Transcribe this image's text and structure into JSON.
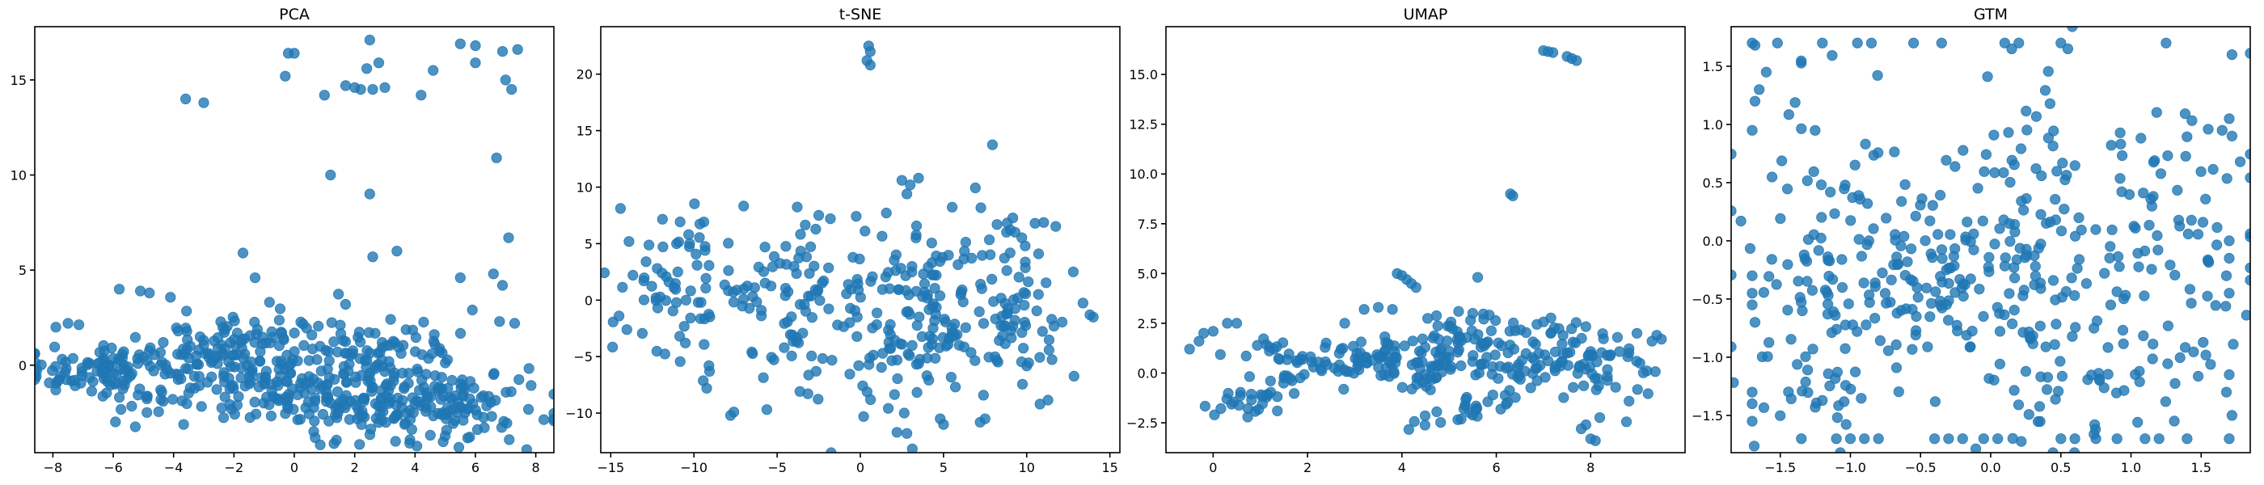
{
  "chart_data": [
    {
      "type": "scatter",
      "title": "PCA",
      "xlim": [
        -8.6,
        8.6
      ],
      "ylim": [
        -4.6,
        17.8
      ],
      "xticks": [
        -8,
        -6,
        -4,
        -2,
        0,
        2,
        4,
        6,
        8
      ],
      "yticks": [
        0,
        5,
        10,
        15
      ],
      "tick_labels_x": [
        "−8",
        "−6",
        "−4",
        "−2",
        "0",
        "2",
        "4",
        "6",
        "8"
      ],
      "tick_labels_y": [
        "0",
        "5",
        "10",
        "15"
      ],
      "point_color": "#1f77b4",
      "points": [
        [
          -0.2,
          16.4
        ],
        [
          0.0,
          16.4
        ],
        [
          -0.3,
          15.2
        ],
        [
          1.0,
          14.2
        ],
        [
          1.7,
          14.7
        ],
        [
          2.0,
          14.6
        ],
        [
          2.2,
          14.5
        ],
        [
          2.5,
          17.1
        ],
        [
          2.4,
          15.6
        ],
        [
          2.8,
          15.9
        ],
        [
          2.6,
          14.5
        ],
        [
          3.0,
          14.6
        ],
        [
          4.2,
          14.2
        ],
        [
          4.6,
          15.5
        ],
        [
          5.5,
          16.9
        ],
        [
          6.0,
          16.8
        ],
        [
          6.0,
          15.9
        ],
        [
          6.9,
          16.5
        ],
        [
          7.4,
          16.6
        ],
        [
          7.0,
          15.0
        ],
        [
          7.2,
          14.5
        ],
        [
          -3.6,
          14.0
        ],
        [
          -3.0,
          13.8
        ],
        [
          1.2,
          10.0
        ],
        [
          6.7,
          10.9
        ],
        [
          2.5,
          9.0
        ],
        [
          7.1,
          6.7
        ],
        [
          -1.7,
          5.9
        ],
        [
          -1.3,
          4.6
        ],
        [
          2.6,
          5.7
        ],
        [
          3.4,
          6.0
        ],
        [
          5.5,
          4.6
        ],
        [
          6.6,
          4.8
        ],
        [
          6.9,
          4.2
        ],
        [
          7.3,
          2.2
        ],
        [
          6.8,
          2.3
        ],
        [
          5.9,
          2.9
        ],
        [
          -4.8,
          3.8
        ],
        [
          -5.1,
          3.9
        ],
        [
          -5.8,
          4.0
        ],
        [
          -7.9,
          2.0
        ],
        [
          -7.5,
          2.2
        ]
      ],
      "clusters": [
        {
          "cx": -6.0,
          "cy": -0.4,
          "sx": 1.6,
          "sy": 0.9,
          "n": 130,
          "tilt": -0.12
        },
        {
          "cx": 0.5,
          "cy": -0.8,
          "sx": 2.4,
          "sy": 1.3,
          "n": 210,
          "tilt": -0.18
        },
        {
          "cx": 4.2,
          "cy": -2.0,
          "sx": 1.9,
          "sy": 1.1,
          "n": 160,
          "tilt": -0.15
        },
        {
          "cx": -2.5,
          "cy": 0.8,
          "sx": 1.6,
          "sy": 1.0,
          "n": 60,
          "tilt": 0.0
        },
        {
          "cx": 2.5,
          "cy": 1.5,
          "sx": 1.8,
          "sy": 0.8,
          "n": 50,
          "tilt": 0.0
        }
      ]
    },
    {
      "type": "scatter",
      "title": "t-SNE",
      "xlim": [
        -15.6,
        15.6
      ],
      "ylim": [
        -13.5,
        24.2
      ],
      "xticks": [
        -15,
        -10,
        -5,
        0,
        5,
        10,
        15
      ],
      "yticks": [
        -10,
        -5,
        0,
        5,
        10,
        15,
        20
      ],
      "tick_labels_x": [
        "−15",
        "−10",
        "−5",
        "0",
        "5",
        "10",
        "15"
      ],
      "tick_labels_y": [
        "−10",
        "−5",
        "0",
        "5",
        "10",
        "15",
        "20"
      ],
      "point_color": "#1f77b4",
      "points": [
        [
          0.5,
          22.5
        ],
        [
          0.6,
          22.0
        ],
        [
          0.4,
          21.2
        ],
        [
          0.6,
          20.8
        ],
        [
          2.5,
          10.6
        ],
        [
          3.0,
          10.2
        ],
        [
          3.5,
          10.8
        ],
        [
          2.8,
          9.4
        ],
        [
          -14.5,
          -1.4
        ],
        [
          -7.8,
          -10.2
        ],
        [
          -7.6,
          -9.9
        ],
        [
          0.2,
          -10.3
        ],
        [
          2.2,
          -11.7
        ],
        [
          2.8,
          -11.8
        ],
        [
          4.8,
          -10.5
        ],
        [
          5.0,
          -11.0
        ],
        [
          7.2,
          -10.8
        ],
        [
          7.5,
          -10.5
        ],
        [
          10.8,
          -9.2
        ],
        [
          14.0,
          -1.5
        ],
        [
          13.8,
          -1.3
        ],
        [
          12.8,
          2.5
        ],
        [
          10.5,
          6.8
        ],
        [
          -2.5,
          7.5
        ],
        [
          -1.8,
          7.2
        ]
      ],
      "clusters": [
        {
          "cx": -11.0,
          "cy": 1.5,
          "sx": 1.8,
          "sy": 3.0,
          "n": 60,
          "tilt": 0.0
        },
        {
          "cx": -5.0,
          "cy": 0.0,
          "sx": 2.6,
          "sy": 4.0,
          "n": 90,
          "tilt": 0.0
        },
        {
          "cx": 1.5,
          "cy": -1.5,
          "sx": 2.4,
          "sy": 4.5,
          "n": 100,
          "tilt": 0.0
        },
        {
          "cx": 6.5,
          "cy": 0.0,
          "sx": 2.4,
          "sy": 4.2,
          "n": 100,
          "tilt": 0.0
        },
        {
          "cx": 10.5,
          "cy": -2.0,
          "sx": 1.2,
          "sy": 3.0,
          "n": 30,
          "tilt": 0.0
        }
      ]
    },
    {
      "type": "scatter",
      "title": "UMAP",
      "xlim": [
        -1.0,
        10.0
      ],
      "ylim": [
        -4.0,
        17.4
      ],
      "xticks": [
        0,
        2,
        4,
        6,
        8
      ],
      "yticks": [
        -2.5,
        0.0,
        2.5,
        5.0,
        7.5,
        10.0,
        12.5,
        15.0
      ],
      "tick_labels_x": [
        "0",
        "2",
        "4",
        "6",
        "8"
      ],
      "tick_labels_y": [
        "−2.5",
        "0.0",
        "2.5",
        "5.0",
        "7.5",
        "10.0",
        "12.5",
        "15.0"
      ],
      "point_color": "#1f77b4",
      "points": [
        [
          7.0,
          16.2
        ],
        [
          7.1,
          16.15
        ],
        [
          7.2,
          16.1
        ],
        [
          7.5,
          15.9
        ],
        [
          7.6,
          15.8
        ],
        [
          7.7,
          15.7
        ],
        [
          6.3,
          9.0
        ],
        [
          6.35,
          8.9
        ],
        [
          3.9,
          5.0
        ],
        [
          4.0,
          4.9
        ],
        [
          4.1,
          4.7
        ],
        [
          4.2,
          4.5
        ],
        [
          4.3,
          4.3
        ],
        [
          -0.5,
          1.2
        ],
        [
          -0.3,
          1.6
        ],
        [
          -0.2,
          2.0
        ],
        [
          0.0,
          2.1
        ],
        [
          0.3,
          2.5
        ],
        [
          0.5,
          2.5
        ],
        [
          7.8,
          -2.8
        ],
        [
          7.9,
          -2.6
        ],
        [
          8.0,
          -3.3
        ],
        [
          8.1,
          -3.4
        ],
        [
          9.3,
          1.6
        ],
        [
          9.4,
          1.9
        ],
        [
          9.5,
          1.7
        ],
        [
          3.2,
          3.2
        ],
        [
          3.5,
          3.3
        ],
        [
          3.8,
          3.2
        ],
        [
          5.2,
          3.1
        ],
        [
          5.5,
          3.0
        ]
      ],
      "clusters": [
        {
          "cx": 1.2,
          "cy": -0.8,
          "sx": 0.7,
          "sy": 0.5,
          "n": 40,
          "tilt": 0.8
        },
        {
          "cx": 2.5,
          "cy": 0.8,
          "sx": 1.0,
          "sy": 0.5,
          "n": 50,
          "tilt": 0.0
        },
        {
          "cx": 4.2,
          "cy": 0.5,
          "sx": 0.9,
          "sy": 0.6,
          "n": 50,
          "tilt": 0.0
        },
        {
          "cx": 6.3,
          "cy": 1.0,
          "sx": 1.3,
          "sy": 1.1,
          "n": 150,
          "tilt": 0.0
        },
        {
          "cx": 5.4,
          "cy": -1.8,
          "sx": 0.6,
          "sy": 0.3,
          "n": 25,
          "tilt": 0.6
        },
        {
          "cx": 8.5,
          "cy": 0.0,
          "sx": 0.5,
          "sy": 1.1,
          "n": 30,
          "tilt": 0.0
        }
      ]
    },
    {
      "type": "scatter",
      "title": "GTM",
      "xlim": [
        -1.85,
        1.85
      ],
      "ylim": [
        -1.82,
        1.84
      ],
      "xticks": [
        -1.5,
        -1.0,
        -0.5,
        0.0,
        0.5,
        1.0,
        1.5
      ],
      "yticks": [
        -1.5,
        -1.0,
        -0.5,
        0.0,
        0.5,
        1.0,
        1.5
      ],
      "tick_labels_x": [
        "−1.5",
        "−1.0",
        "−0.5",
        "0.0",
        "0.5",
        "1.0",
        "1.5"
      ],
      "tick_labels_y": [
        "−1.5",
        "−1.0",
        "−0.5",
        "0.0",
        "0.5",
        "1.0",
        "1.5"
      ],
      "point_color": "#1f77b4",
      "points": [
        [
          -1.7,
          1.7
        ],
        [
          -1.68,
          1.68
        ],
        [
          -1.52,
          1.7
        ],
        [
          -1.2,
          1.7
        ],
        [
          -0.95,
          1.7
        ],
        [
          -0.85,
          1.7
        ],
        [
          -0.55,
          1.7
        ],
        [
          -0.35,
          1.7
        ],
        [
          0.1,
          1.7
        ],
        [
          0.15,
          1.65
        ],
        [
          0.2,
          1.7
        ],
        [
          0.5,
          1.7
        ],
        [
          0.55,
          1.65
        ],
        [
          1.25,
          1.7
        ],
        [
          1.72,
          1.6
        ],
        [
          -1.35,
          -1.7
        ],
        [
          -1.1,
          -1.7
        ],
        [
          -1.0,
          -1.7
        ],
        [
          -0.9,
          -1.7
        ],
        [
          -0.8,
          -1.7
        ],
        [
          -0.4,
          -1.7
        ],
        [
          -0.3,
          -1.7
        ],
        [
          -0.2,
          -1.7
        ],
        [
          -0.05,
          -1.7
        ],
        [
          0.05,
          -1.7
        ],
        [
          0.5,
          -1.7
        ],
        [
          0.6,
          -1.7
        ],
        [
          0.75,
          -1.7
        ],
        [
          0.9,
          -1.7
        ],
        [
          1.1,
          -1.7
        ],
        [
          1.2,
          -1.7
        ],
        [
          1.4,
          -1.7
        ],
        [
          1.7,
          -1.7
        ],
        [
          -1.7,
          0.95
        ],
        [
          -1.68,
          1.2
        ],
        [
          -1.65,
          1.3
        ],
        [
          -1.6,
          1.45
        ],
        [
          -1.7,
          -0.3
        ],
        [
          -1.7,
          -0.45
        ],
        [
          -1.7,
          -0.55
        ],
        [
          -1.68,
          -0.7
        ],
        [
          -1.7,
          -1.3
        ],
        [
          -1.7,
          -1.4
        ],
        [
          -1.7,
          -1.55
        ],
        [
          1.7,
          1.05
        ],
        [
          1.65,
          0.95
        ],
        [
          1.72,
          0.9
        ],
        [
          1.7,
          0.0
        ],
        [
          1.7,
          -0.15
        ],
        [
          1.68,
          -0.3
        ],
        [
          1.7,
          -0.45
        ],
        [
          1.7,
          -1.15
        ],
        [
          1.68,
          -1.3
        ],
        [
          1.72,
          -1.5
        ]
      ],
      "clusters": [
        {
          "cx": -0.6,
          "cy": -0.4,
          "sx": 0.45,
          "sy": 0.35,
          "n": 110,
          "tilt": 0.0
        },
        {
          "cx": 0.3,
          "cy": 0.3,
          "sx": 0.5,
          "sy": 0.6,
          "n": 110,
          "tilt": 0.0
        },
        {
          "cx": 0.6,
          "cy": -0.9,
          "sx": 0.5,
          "sy": 0.5,
          "n": 80,
          "tilt": 0.0
        },
        {
          "cx": -1.2,
          "cy": 0.3,
          "sx": 0.35,
          "sy": 0.6,
          "n": 50,
          "tilt": 0.0
        },
        {
          "cx": 1.3,
          "cy": 0.0,
          "sx": 0.3,
          "sy": 0.7,
          "n": 60,
          "tilt": 0.0
        },
        {
          "cx": -1.2,
          "cy": -1.2,
          "sx": 0.35,
          "sy": 0.3,
          "n": 40,
          "tilt": 0.0
        }
      ]
    }
  ]
}
